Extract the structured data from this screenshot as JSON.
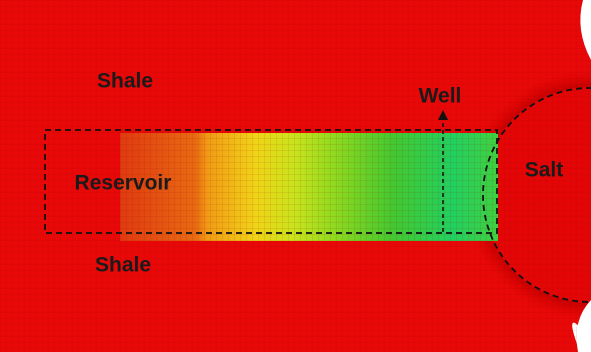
{
  "labels": [
    "Shale",
    "Well",
    "Reservoir",
    "Salt",
    "Shale"
  ]
}
